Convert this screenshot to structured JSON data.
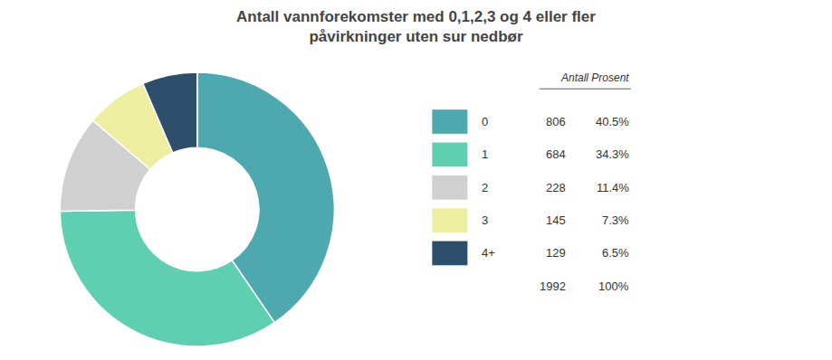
{
  "chart_data": {
    "type": "pie",
    "title": "Antall vannforekomster med 0,1,2,3 og 4 eller fler",
    "subtitle": "påvirkninger uten sur nedbør",
    "categories": [
      "0",
      "1",
      "2",
      "3",
      "4+"
    ],
    "values": [
      806,
      684,
      228,
      145,
      129
    ],
    "colors": [
      "#4da8b0",
      "#5ecfb0",
      "#d0d0d0",
      "#eeeea0",
      "#2e4f6b"
    ],
    "legend_title": "Antall Prosent",
    "percent_labels": [
      "40.5%",
      "34.3%",
      "11.4%",
      "7.3%",
      "6.5%"
    ],
    "total": 1992,
    "total_label": "100%"
  }
}
